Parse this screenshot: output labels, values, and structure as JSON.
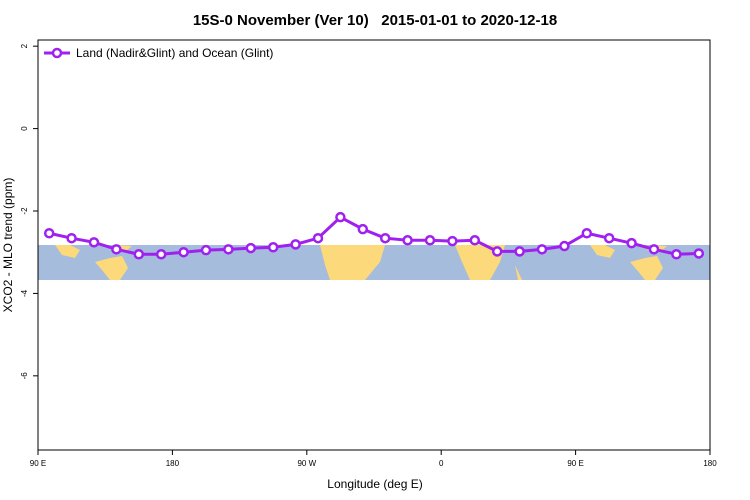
{
  "chart_data": {
    "type": "line",
    "title": "15S-0 November (Ver 10)   2015-01-01 to 2020-12-18",
    "x_label": "Longitude (deg E)",
    "y_label": "XCO2 - MLO trend (ppm)",
    "x": [
      97.5,
      112.5,
      127.5,
      142.5,
      157.5,
      172.5,
      187.5,
      202.5,
      217.5,
      232.5,
      247.5,
      262.5,
      277.5,
      292.5,
      307.5,
      322.5,
      337.5,
      352.5,
      367.5,
      382.5,
      397.5,
      412.5,
      427.5,
      442.5,
      457.5,
      472.5,
      487.5,
      502.5,
      517.5,
      532.5
    ],
    "series": [
      {
        "name": "Land (Nadir&Glint) and Ocean (Glint)",
        "color": "#a020f0",
        "values": [
          -2.54,
          -2.66,
          -2.76,
          -2.93,
          -3.05,
          -3.05,
          -3.0,
          -2.95,
          -2.93,
          -2.9,
          -2.88,
          -2.81,
          -2.66,
          -2.15,
          -2.44,
          -2.66,
          -2.71,
          -2.71,
          -2.73,
          -2.71,
          -2.98,
          -2.98,
          -2.93,
          -2.85,
          -2.54,
          -2.66,
          -2.78,
          -2.93,
          -3.05,
          -3.03
        ]
      }
    ],
    "xlim": [
      90,
      540
    ],
    "xticks": [
      {
        "value": 90,
        "label": "90 E"
      },
      {
        "value": 180,
        "label": "180"
      },
      {
        "value": 270,
        "label": "90 W"
      },
      {
        "value": 360,
        "label": "0"
      },
      {
        "value": 450,
        "label": "90 E"
      },
      {
        "value": 540,
        "label": "180"
      }
    ],
    "ylim": [
      -7.8,
      2.15
    ],
    "yticks": [
      2,
      0,
      -2,
      -4,
      -6
    ],
    "legend": "top-left"
  }
}
